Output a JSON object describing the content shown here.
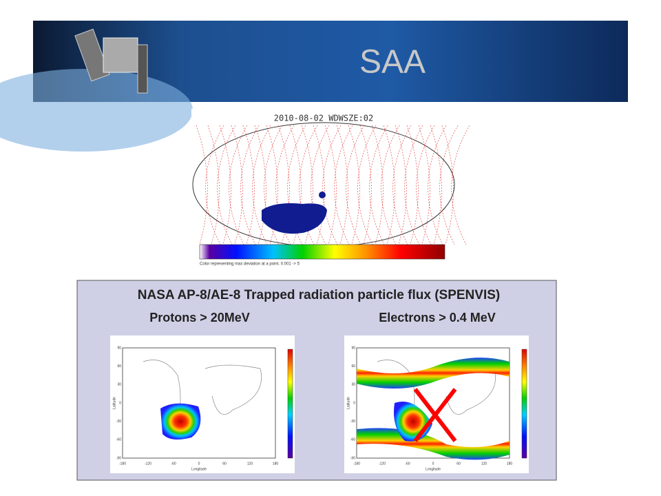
{
  "header": {
    "title": "SAA"
  },
  "map_figure": {
    "title": "2010-08-02 WDWSZE:02",
    "caption": "Color representing max deviation at a point. 0.001 -> 5"
  },
  "panel": {
    "title": "NASA AP-8/AE-8 Trapped radiation particle flux (SPENVIS)",
    "plots": [
      {
        "label": "Protons > 20MeV",
        "xlabel": "Longitude",
        "ylabel": "Latitude",
        "xticks": [
          "-180",
          "-120",
          "-60",
          "0",
          "60",
          "120",
          "180"
        ],
        "yticks": [
          "90",
          "60",
          "30",
          "0",
          "-30",
          "-60",
          "-90"
        ]
      },
      {
        "label": "Electrons > 0.4 MeV",
        "xlabel": "Longitude",
        "ylabel": "Latitude",
        "xticks": [
          "-180",
          "-120",
          "-60",
          "0",
          "60",
          "120",
          "180"
        ],
        "yticks": [
          "90",
          "60",
          "30",
          "0",
          "-30",
          "-60",
          "-90"
        ]
      }
    ]
  }
}
